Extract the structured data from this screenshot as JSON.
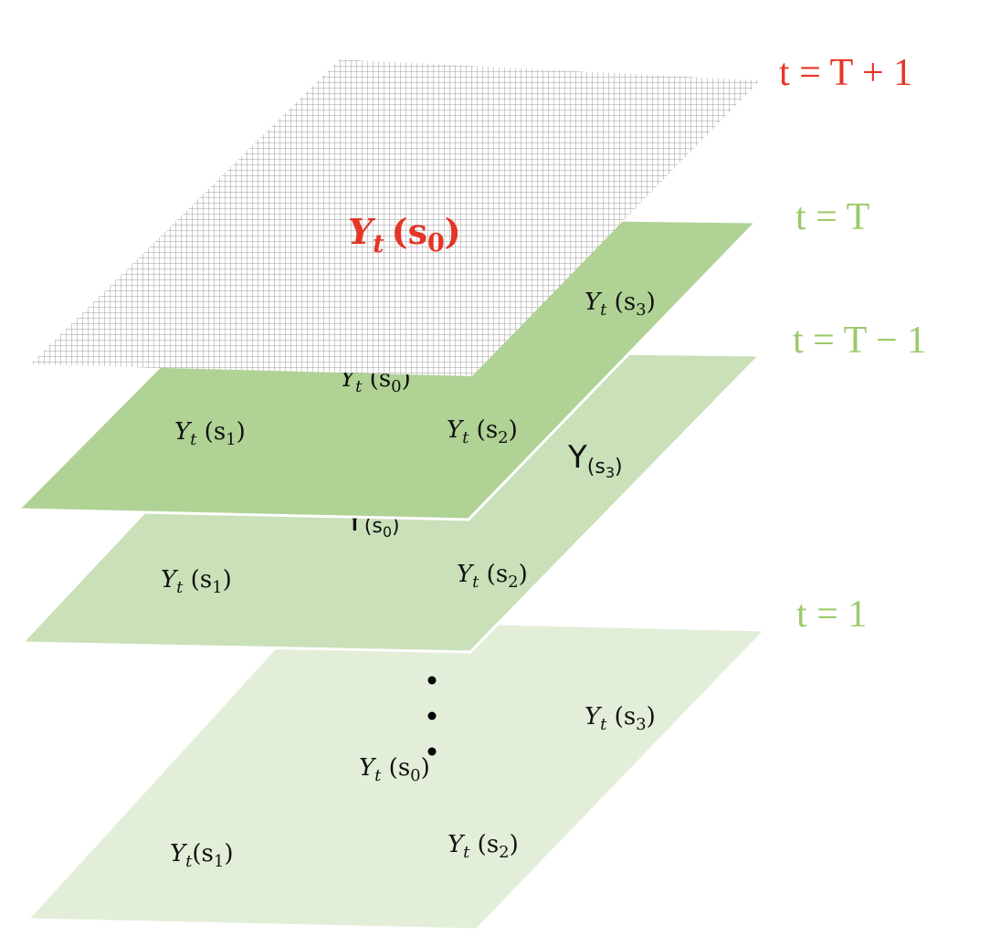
{
  "colors": {
    "layer_t1": "#e3eed8",
    "layer_tm1": "#c9e0b9",
    "layer_t": "#b0d295",
    "edge": "#ffffff",
    "future_grid": "#9d9d9d",
    "future_text": "#e53527",
    "past_text": "#9ccb6b",
    "label_text": "#111111",
    "dots": "#000000"
  },
  "time_labels": {
    "future": "t = T + 1",
    "t_current": "t = T",
    "t_prev": "t = T − 1",
    "t_first": "t = 1"
  },
  "layers": {
    "t_plus_1": {
      "target": {
        "var": "Y",
        "sub": "t",
        "arg": "(s",
        "arg_sub": "0",
        "close": ")"
      }
    },
    "t": {
      "s0": {
        "var": "Y",
        "sub": "t",
        "arg": " (s",
        "arg_sub": "0",
        "close": ")"
      },
      "s1": {
        "var": "Y",
        "sub": "t",
        "arg": " (s",
        "arg_sub": "1",
        "close": ")"
      },
      "s2": {
        "var": "Y",
        "sub": "t",
        "arg": " (s",
        "arg_sub": "2",
        "close": ")"
      },
      "s3": {
        "var": "Y",
        "sub": "t",
        "arg": " (s",
        "arg_sub": "3",
        "close": ")"
      }
    },
    "t_minus_1": {
      "s0": {
        "var": "Y",
        "arg": "(s",
        "arg_sub": "0",
        "close": ")"
      },
      "s1": {
        "var": "Y",
        "sub": "t",
        "arg": " (s",
        "arg_sub": "1",
        "close": ")"
      },
      "s2": {
        "var": "Y",
        "sub": "t",
        "arg": " (s",
        "arg_sub": "2",
        "close": ")"
      },
      "s3": {
        "var": "Y",
        "arg": "(s",
        "arg_sub": "3",
        "close": ")"
      }
    },
    "t_1": {
      "s0": {
        "var": "Y",
        "sub": "t",
        "arg": " (s",
        "arg_sub": "0",
        "close": ")"
      },
      "s1": {
        "var": "Y",
        "sub": "t",
        "arg": "(s",
        "arg_sub": "1",
        "close": ")"
      },
      "s2": {
        "var": "Y",
        "sub": "t",
        "arg": " (s",
        "arg_sub": "2",
        "close": ")"
      },
      "s3": {
        "var": "Y",
        "sub": "t",
        "arg": " (s",
        "arg_sub": "3",
        "close": ")"
      }
    }
  }
}
